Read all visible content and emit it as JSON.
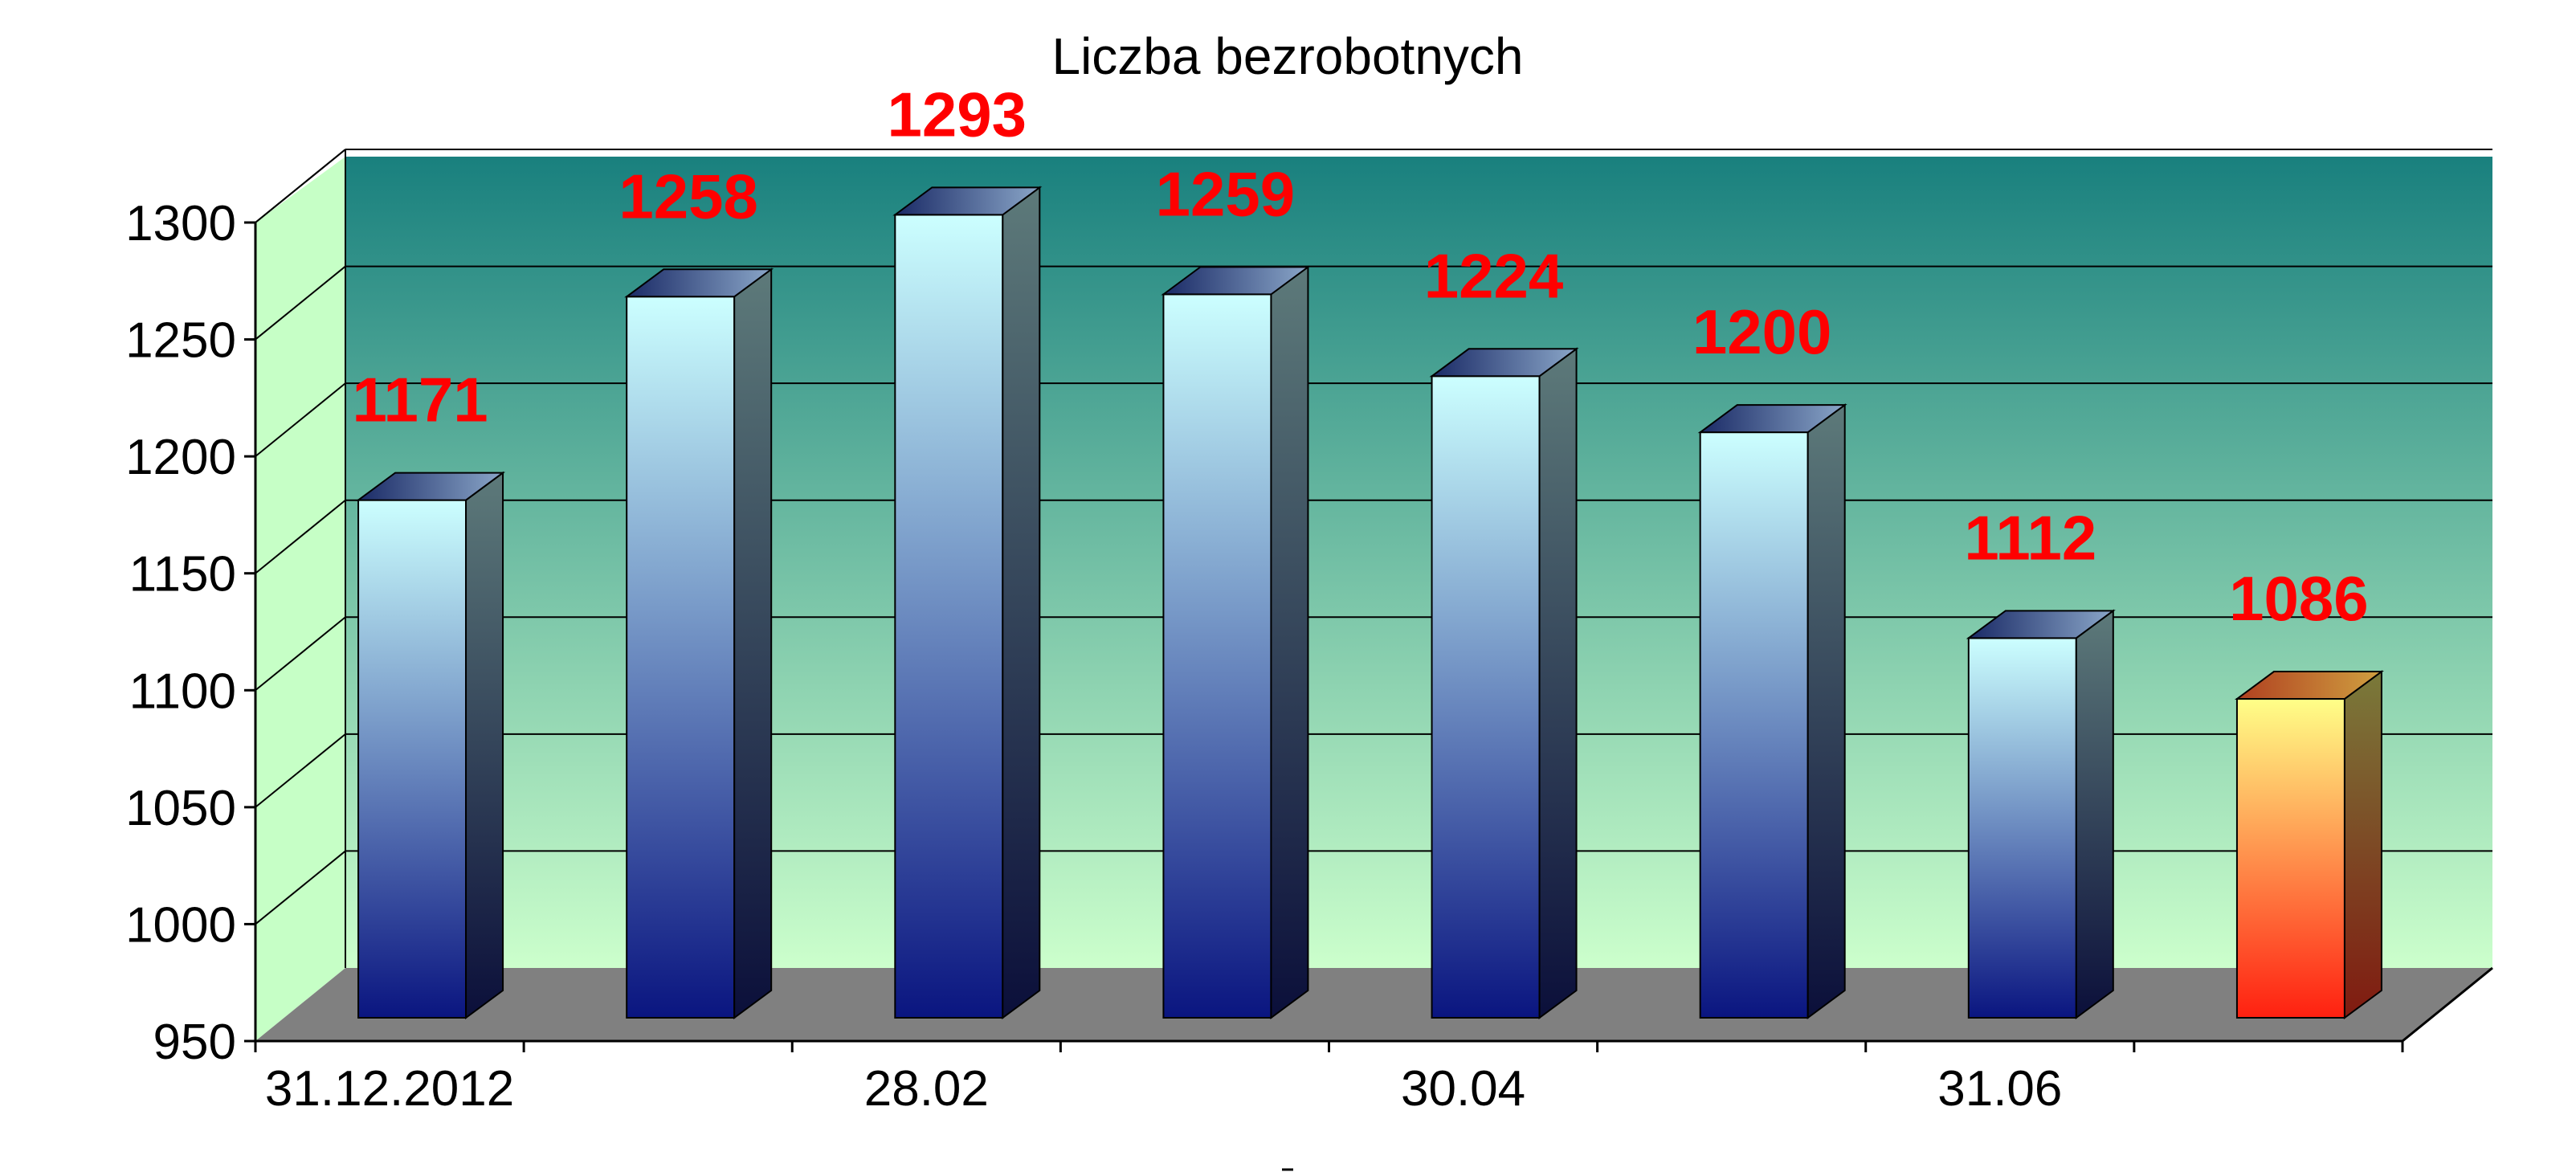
{
  "chart_data": {
    "type": "bar",
    "title": "Liczba bezrobotnych",
    "xlabel": "",
    "ylabel": "",
    "ylim": [
      950,
      1300
    ],
    "yticks": [
      950,
      1000,
      1050,
      1100,
      1150,
      1200,
      1250,
      1300
    ],
    "categories": [
      "31.12.2012",
      "",
      "28.02",
      "",
      "30.04",
      "",
      "31.06",
      ""
    ],
    "values": [
      1171,
      1258,
      1293,
      1259,
      1224,
      1200,
      1112,
      1086
    ],
    "grid": true,
    "legend": "none",
    "colors": {
      "bar_top": "#ccffff",
      "bar_bottom": "#0a1580",
      "highlight_top": "#ffff88",
      "highlight_bottom": "#ff2010",
      "back_wall_top": "#19807e",
      "back_wall_bottom": "#ccffcc",
      "floor": "#808080",
      "label": "#ff0000"
    },
    "highlight_index": 7
  }
}
